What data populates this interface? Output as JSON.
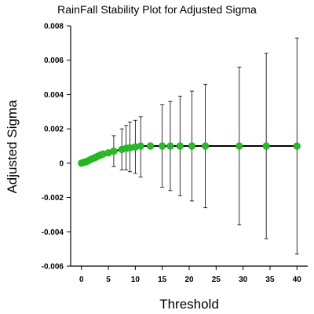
{
  "chart_data": {
    "type": "scatter",
    "title": "RainFall Stability Plot for Adjusted Sigma",
    "xlabel": "Threshold",
    "ylabel": "Adjusted Sigma",
    "xlim": [
      -2,
      42
    ],
    "ylim": [
      -0.006,
      0.008
    ],
    "xticks": [
      0,
      5,
      10,
      15,
      20,
      25,
      30,
      35,
      40
    ],
    "xtick_labels": [
      "0",
      "5",
      "10",
      "15",
      "20",
      "25",
      "30",
      "35",
      "40"
    ],
    "yticks": [
      -0.006,
      -0.004,
      -0.002,
      0,
      0.002,
      0.004,
      0.006,
      0.008
    ],
    "ytick_labels": [
      "-0.006",
      "-0.004",
      "-0.002",
      "0",
      "0.002",
      "0.004",
      "0.006",
      "0.008"
    ],
    "grid": false,
    "series": [
      {
        "marker_color": "#22c022",
        "line_color": "#000000",
        "points": [
          {
            "x": 0.0,
            "y": 0.0,
            "lo": 0.0,
            "hi": 0.0
          },
          {
            "x": 0.5,
            "y": 5e-05,
            "lo": 5e-05,
            "hi": 5e-05
          },
          {
            "x": 1.0,
            "y": 0.0001,
            "lo": 0.0001,
            "hi": 0.0001
          },
          {
            "x": 1.5,
            "y": 0.00018,
            "lo": 0.00018,
            "hi": 0.00018
          },
          {
            "x": 2.0,
            "y": 0.00025,
            "lo": 0.00025,
            "hi": 0.00025
          },
          {
            "x": 2.5,
            "y": 0.00032,
            "lo": 0.00032,
            "hi": 0.00032
          },
          {
            "x": 3.0,
            "y": 0.0004,
            "lo": 0.0004,
            "hi": 0.0004
          },
          {
            "x": 3.5,
            "y": 0.00047,
            "lo": 0.00047,
            "hi": 0.00047
          },
          {
            "x": 4.0,
            "y": 0.00053,
            "lo": 0.00053,
            "hi": 0.00053
          },
          {
            "x": 5.0,
            "y": 0.0006,
            "lo": 0.0006,
            "hi": 0.0006
          },
          {
            "x": 6.0,
            "y": 0.0007,
            "lo": -0.0002,
            "hi": 0.0016
          },
          {
            "x": 7.5,
            "y": 0.0008,
            "lo": -0.0004,
            "hi": 0.002
          },
          {
            "x": 8.3,
            "y": 0.00087,
            "lo": -0.0004,
            "hi": 0.0022
          },
          {
            "x": 9.0,
            "y": 0.0009,
            "lo": -0.0005,
            "hi": 0.0024
          },
          {
            "x": 10.0,
            "y": 0.00095,
            "lo": -0.0006,
            "hi": 0.0025
          },
          {
            "x": 11.0,
            "y": 0.001,
            "lo": -0.0008,
            "hi": 0.0027
          },
          {
            "x": 12.8,
            "y": 0.001,
            "lo": 0.001,
            "hi": 0.001
          },
          {
            "x": 15.0,
            "y": 0.001,
            "lo": -0.0014,
            "hi": 0.0034
          },
          {
            "x": 16.5,
            "y": 0.001,
            "lo": -0.0016,
            "hi": 0.0036
          },
          {
            "x": 18.3,
            "y": 0.001,
            "lo": -0.0019,
            "hi": 0.0039
          },
          {
            "x": 20.5,
            "y": 0.001,
            "lo": -0.0022,
            "hi": 0.0042
          },
          {
            "x": 23.0,
            "y": 0.001,
            "lo": -0.0026,
            "hi": 0.0046
          },
          {
            "x": 29.3,
            "y": 0.001,
            "lo": -0.0036,
            "hi": 0.0056
          },
          {
            "x": 34.3,
            "y": 0.001,
            "lo": -0.0044,
            "hi": 0.0064
          },
          {
            "x": 40.0,
            "y": 0.001,
            "lo": -0.0053,
            "hi": 0.0073
          }
        ]
      }
    ]
  }
}
